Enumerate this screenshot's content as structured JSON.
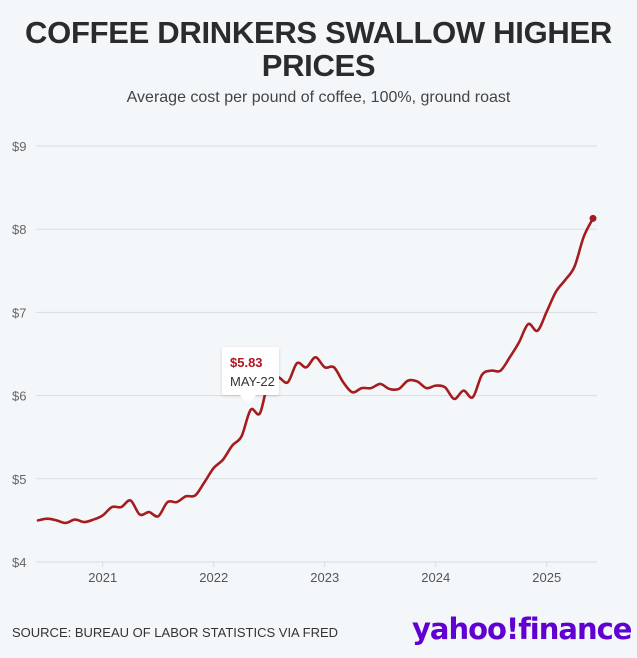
{
  "title": "COFFEE DRINKERS SWALLOW HIGHER PRICES",
  "subtitle": "Average cost per pound of coffee, 100%, ground roast",
  "source": "SOURCE: BUREAU OF LABOR STATISTICS VIA FRED",
  "logo": "yahoo!finance",
  "colors": {
    "line": "#a51c1f",
    "logo": "#6001d2",
    "grid": "#d9dde2",
    "background": "#f4f7fa"
  },
  "tooltip": {
    "value": "$5.83",
    "date": "MAY-22"
  },
  "chart_data": {
    "type": "line",
    "title": "COFFEE DRINKERS SWALLOW HIGHER PRICES",
    "subtitle": "Average cost per pound of coffee, 100%, ground roast",
    "xlabel": "",
    "ylabel": "",
    "ylim": [
      4,
      9
    ],
    "yticks": [
      "$4",
      "$5",
      "$6",
      "$7",
      "$8",
      "$9"
    ],
    "ytick_values": [
      4,
      5,
      6,
      7,
      8,
      9
    ],
    "xticks": [
      "2021",
      "2022",
      "2023",
      "2024",
      "2025"
    ],
    "grid": "horizontal",
    "x_start": "2020-06",
    "x_end": "2025-06",
    "frequency": "monthly",
    "series": [
      {
        "values": [
          4.5,
          4.52,
          4.5,
          4.47,
          4.51,
          4.48,
          4.51,
          4.56,
          4.66,
          4.66,
          4.74,
          4.57,
          4.6,
          4.55,
          4.72,
          4.72,
          4.79,
          4.8,
          4.96,
          5.13,
          5.23,
          5.4,
          5.51,
          5.83,
          5.79,
          6.21,
          6.22,
          6.16,
          6.39,
          6.34,
          6.46,
          6.34,
          6.34,
          6.16,
          6.04,
          6.09,
          6.09,
          6.14,
          6.08,
          6.08,
          6.18,
          6.17,
          6.09,
          6.12,
          6.1,
          5.96,
          6.06,
          5.98,
          6.25,
          6.3,
          6.3,
          6.46,
          6.64,
          6.86,
          6.78,
          7.01,
          7.25,
          7.39,
          7.55,
          7.91,
          8.13
        ]
      }
    ],
    "annotation": {
      "date": "2022-05",
      "value": 5.83,
      "label": "$5.83",
      "sublabel": "MAY-22"
    },
    "end_marker": true
  }
}
